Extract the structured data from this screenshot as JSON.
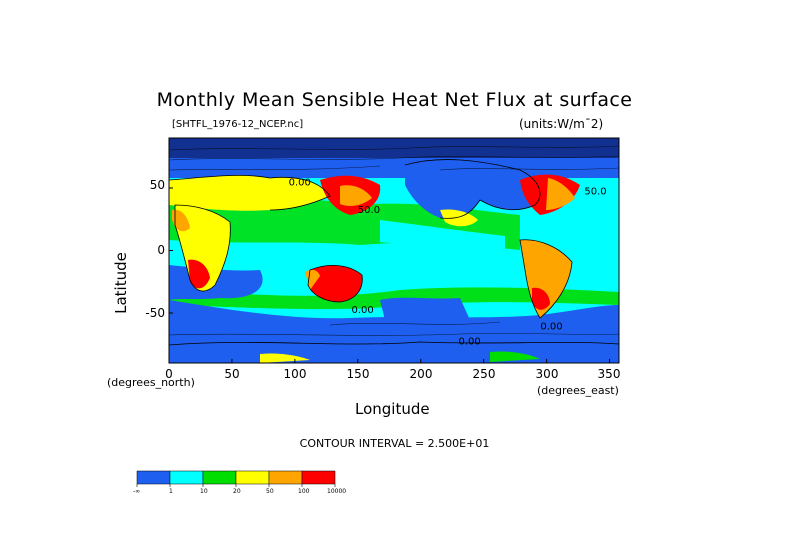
{
  "chart_data": {
    "type": "heatmap",
    "title": "Monthly Mean Sensible Heat Net Flux at surface",
    "file_label": "[SHTFL_1976-12_NCEP.nc]",
    "units_label": "(units:W/m^2)",
    "xlabel": "Longitude",
    "ylabel": "Latitude",
    "x_unit_label": "(degrees_east)",
    "y_unit_label": "(degrees_north)",
    "xlim": [
      0,
      357.5
    ],
    "ylim": [
      -90,
      90
    ],
    "x_ticks": [
      "0",
      "50",
      "100",
      "150",
      "200",
      "250",
      "300",
      "350"
    ],
    "y_ticks": [
      "50",
      "0",
      "-50"
    ],
    "contour_interval": "CONTOUR INTERVAL = 2.500E+01",
    "contour_labels": [
      "0.00",
      "50.0",
      "50.0",
      "0.00",
      "0.00",
      "0.00"
    ],
    "colorbar": {
      "colors": [
        "#1e5ff0",
        "#00ffff",
        "#00dd00",
        "#ffff00",
        "#ffa500",
        "#ff0000"
      ],
      "boundaries": [
        "-∞",
        "1",
        "10",
        "20",
        "50",
        "100",
        "10000"
      ]
    },
    "grid": false
  }
}
